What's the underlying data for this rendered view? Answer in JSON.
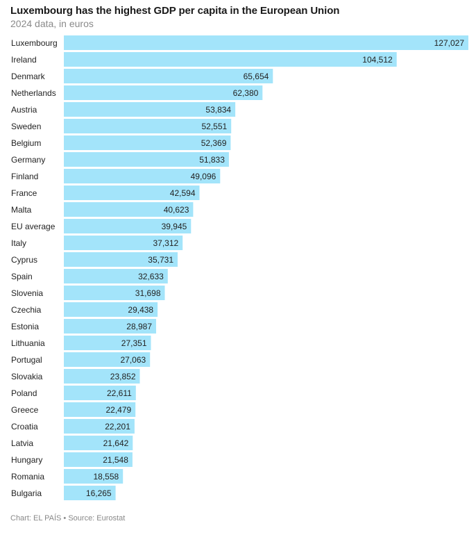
{
  "title": "Luxembourg has the highest GDP per capita in the European Union",
  "subtitle": "2024 data, in euros",
  "footer": "Chart: EL PAÍS • Source: Eurostat",
  "colors": {
    "bar": "#a3e4fa",
    "text": "#222222",
    "muted": "#8a8a8a"
  },
  "chart_data": {
    "type": "bar",
    "orientation": "horizontal",
    "title": "Luxembourg has the highest GDP per capita in the European Union",
    "subtitle": "2024 data, in euros",
    "categories": [
      "Luxembourg",
      "Ireland",
      "Denmark",
      "Netherlands",
      "Austria",
      "Sweden",
      "Belgium",
      "Germany",
      "Finland",
      "France",
      "Malta",
      "EU average",
      "Italy",
      "Cyprus",
      "Spain",
      "Slovenia",
      "Czechia",
      "Estonia",
      "Lithuania",
      "Portugal",
      "Slovakia",
      "Poland",
      "Greece",
      "Croatia",
      "Latvia",
      "Hungary",
      "Romania",
      "Bulgaria"
    ],
    "values": [
      127027,
      104512,
      65654,
      62380,
      53834,
      52551,
      52369,
      51833,
      49096,
      42594,
      40623,
      39945,
      37312,
      35731,
      32633,
      31698,
      29438,
      28987,
      27351,
      27063,
      23852,
      22611,
      22479,
      22201,
      21642,
      21548,
      18558,
      16265
    ],
    "value_labels": [
      "127,027",
      "104,512",
      "65,654",
      "62,380",
      "53,834",
      "52,551",
      "52,369",
      "51,833",
      "49,096",
      "42,594",
      "40,623",
      "39,945",
      "37,312",
      "35,731",
      "32,633",
      "31,698",
      "29,438",
      "28,987",
      "27,351",
      "27,063",
      "23,852",
      "22,611",
      "22,479",
      "22,201",
      "21,642",
      "21,548",
      "18,558",
      "16,265"
    ],
    "xlim": [
      0,
      127027
    ],
    "grid": false,
    "legend": "none"
  }
}
